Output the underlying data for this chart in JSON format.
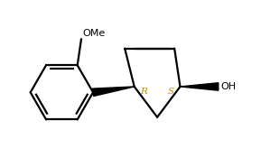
{
  "background_color": "#ffffff",
  "fig_width": 2.89,
  "fig_height": 1.75,
  "dpi": 100,
  "line_color": "#000000",
  "lw": 1.6,
  "label_R": "R",
  "label_S": "S",
  "label_OH": "OH",
  "label_OMe": "OMe",
  "font_size_stereo": 7.5,
  "font_size_group": 8,
  "stereo_color": "#cc8800"
}
